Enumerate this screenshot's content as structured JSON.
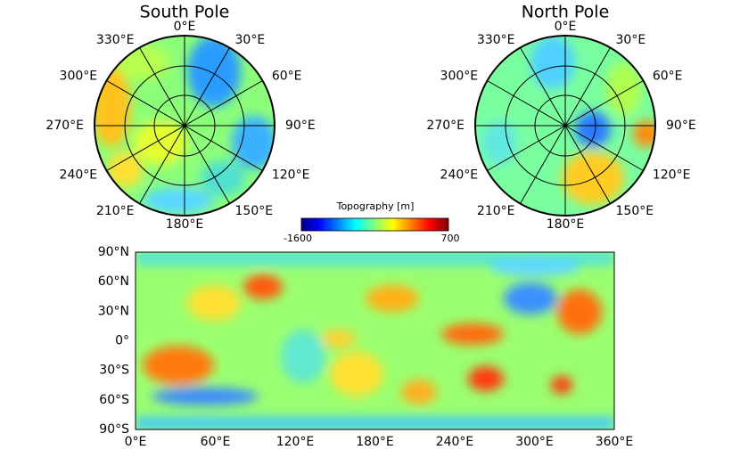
{
  "south_pole": {
    "title": "South Pole",
    "longitude_labels": [
      "0°E",
      "30°E",
      "60°E",
      "90°E",
      "120°E",
      "150°E",
      "180°E",
      "210°E",
      "240°E",
      "270°E",
      "300°E",
      "330°E"
    ]
  },
  "north_pole": {
    "title": "North Pole",
    "longitude_labels": [
      "0°E",
      "30°E",
      "60°E",
      "90°E",
      "120°E",
      "150°E",
      "180°E",
      "210°E",
      "240°E",
      "270°E",
      "300°E",
      "330°E"
    ]
  },
  "colorbar": {
    "label": "Topography [m]",
    "min": -1600,
    "max": 700
  },
  "map": {
    "latitude_labels": [
      "90°N",
      "60°N",
      "30°N",
      "0°",
      "30°S",
      "60°S",
      "90°S"
    ],
    "longitude_labels": [
      "0°E",
      "60°E",
      "120°E",
      "180°E",
      "240°E",
      "300°E",
      "360°E"
    ]
  }
}
